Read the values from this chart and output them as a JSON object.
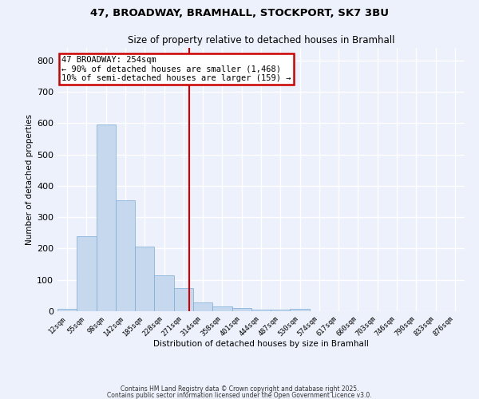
{
  "title_line1": "47, BROADWAY, BRAMHALL, STOCKPORT, SK7 3BU",
  "title_line2": "Size of property relative to detached houses in Bramhall",
  "xlabel": "Distribution of detached houses by size in Bramhall",
  "ylabel": "Number of detached properties",
  "bar_color": "#c5d8ee",
  "bar_edge_color": "#7aadd4",
  "background_color": "#edf1fb",
  "grid_color": "#ffffff",
  "bin_labels": [
    "12sqm",
    "55sqm",
    "98sqm",
    "142sqm",
    "185sqm",
    "228sqm",
    "271sqm",
    "314sqm",
    "358sqm",
    "401sqm",
    "444sqm",
    "487sqm",
    "530sqm",
    "574sqm",
    "617sqm",
    "660sqm",
    "703sqm",
    "746sqm",
    "790sqm",
    "833sqm",
    "876sqm"
  ],
  "bar_values": [
    8,
    240,
    595,
    355,
    205,
    115,
    73,
    28,
    15,
    10,
    5,
    5,
    8,
    0,
    0,
    0,
    0,
    0,
    0,
    0,
    0
  ],
  "red_line_x": 6.28,
  "annotation_text": "47 BROADWAY: 254sqm\n← 90% of detached houses are smaller (1,468)\n10% of semi-detached houses are larger (159) →",
  "annotation_box_color": "#ffffff",
  "annotation_border_color": "#cc0000",
  "ylim": [
    0,
    840
  ],
  "yticks": [
    0,
    100,
    200,
    300,
    400,
    500,
    600,
    700,
    800
  ],
  "footnote1": "Contains HM Land Registry data © Crown copyright and database right 2025.",
  "footnote2": "Contains public sector information licensed under the Open Government Licence v3.0."
}
